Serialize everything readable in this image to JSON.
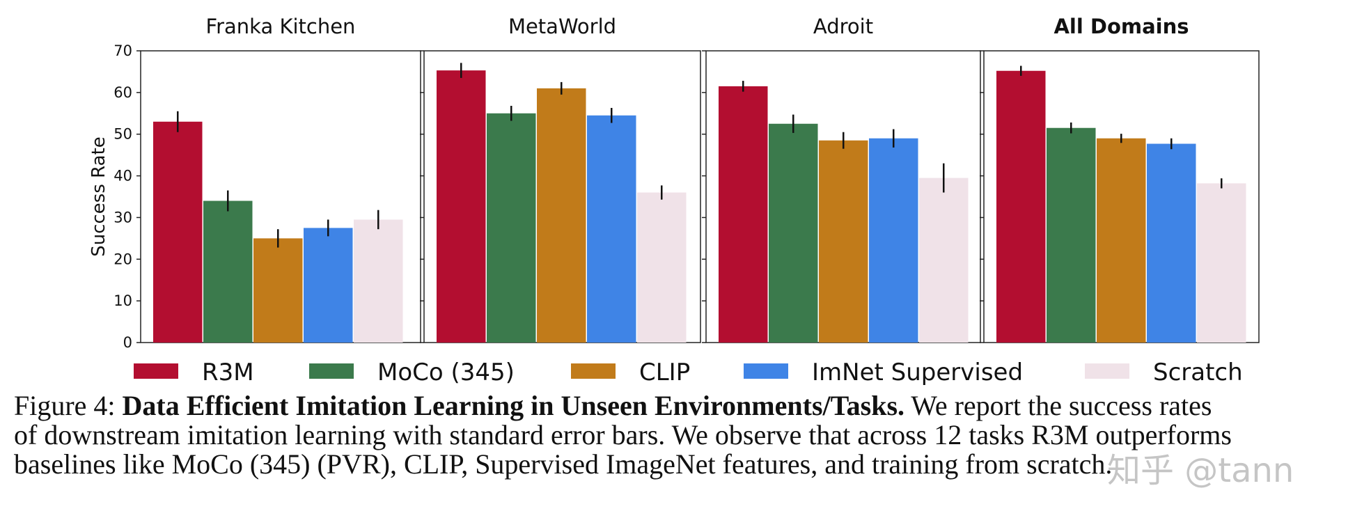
{
  "chart_data": {
    "type": "bar",
    "ylabel": "Success Rate",
    "ylim": [
      0,
      70
    ],
    "yticks": [
      0,
      10,
      20,
      30,
      40,
      50,
      60,
      70
    ],
    "series_names": [
      "R3M",
      "MoCo (345)",
      "CLIP",
      "ImNet Supervised",
      "Scratch"
    ],
    "colors": {
      "R3M": "#b30e30",
      "MoCo (345)": "#3b7a4c",
      "CLIP": "#c17b1a",
      "ImNet Supervised": "#3f84e6",
      "Scratch": "#f0e2e8"
    },
    "panels": [
      {
        "title": "Franka Kitchen",
        "bold": false,
        "values": [
          53,
          34,
          25,
          27.5,
          29.5
        ],
        "errors": [
          2.5,
          2.5,
          2.2,
          2.0,
          2.3
        ]
      },
      {
        "title": "MetaWorld",
        "bold": false,
        "values": [
          65.3,
          55,
          61,
          54.5,
          36
        ],
        "errors": [
          1.8,
          1.8,
          1.5,
          1.8,
          1.7
        ]
      },
      {
        "title": "Adroit",
        "bold": false,
        "values": [
          61.5,
          52.5,
          48.5,
          49,
          39.5
        ],
        "errors": [
          1.3,
          2.2,
          2.0,
          2.2,
          3.5
        ]
      },
      {
        "title": "All Domains",
        "bold": true,
        "values": [
          65.2,
          51.5,
          49,
          47.7,
          38.2
        ],
        "errors": [
          1.2,
          1.3,
          1.1,
          1.3,
          1.2
        ]
      }
    ]
  },
  "caption": {
    "figure_label": "Figure 4:",
    "title": "Data Efficient Imitation Learning in Unseen Environments/Tasks.",
    "line1_rest": "We report the success rates",
    "line2": "of downstream imitation learning with standard error bars. We observe that across 12 tasks R3M outperforms",
    "line3": "baselines like MoCo (345) (PVR), CLIP, Supervised ImageNet features, and training from scratch."
  },
  "watermark": "知乎 @tann"
}
